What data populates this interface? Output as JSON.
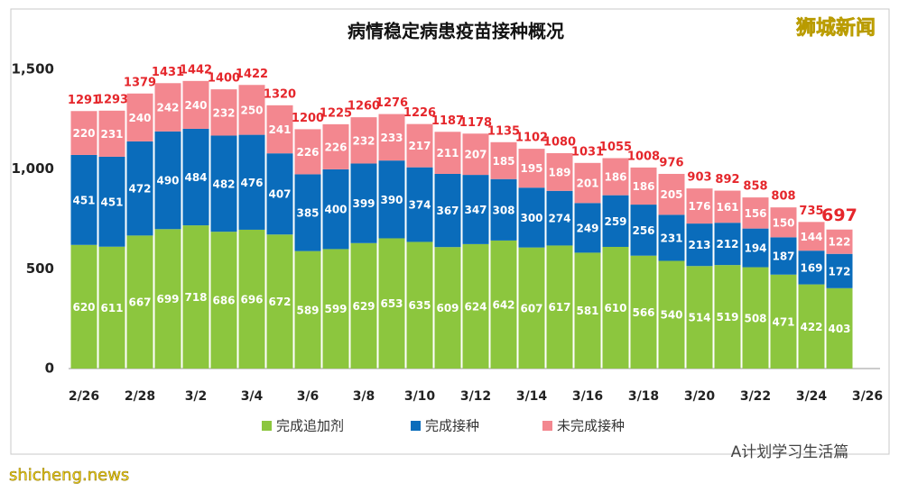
{
  "chart_data": {
    "type": "stacked-bar",
    "title": "病情稳定病患疫苗接种概况",
    "watermark": "狮城新闻",
    "categories": [
      "2/26",
      null,
      "2/28",
      null,
      "3/2",
      null,
      "3/4",
      null,
      "3/6",
      null,
      "3/8",
      null,
      "3/10",
      null,
      "3/12",
      null,
      "3/14",
      null,
      "3/16",
      null,
      "3/18",
      null,
      "3/20",
      null,
      "3/22",
      null,
      "3/24",
      null,
      "3/26"
    ],
    "series": [
      {
        "name": "完成追加剂",
        "color": "#8cc63e",
        "values": [
          620,
          611,
          667,
          699,
          718,
          686,
          696,
          672,
          589,
          599,
          629,
          653,
          635,
          609,
          624,
          642,
          607,
          617,
          581,
          610,
          566,
          540,
          514,
          519,
          508,
          471,
          422,
          403,
          null
        ]
      },
      {
        "name": "完成接种",
        "color": "#0a6cbb",
        "values": [
          451,
          451,
          472,
          490,
          484,
          482,
          476,
          407,
          385,
          400,
          399,
          390,
          374,
          367,
          347,
          308,
          300,
          274,
          249,
          259,
          256,
          231,
          213,
          212,
          194,
          187,
          169,
          172,
          null
        ]
      },
      {
        "name": "未完成接种",
        "color": "#f3878f",
        "values": [
          220,
          231,
          240,
          242,
          240,
          232,
          250,
          241,
          226,
          226,
          232,
          233,
          217,
          211,
          207,
          185,
          195,
          189,
          201,
          186,
          186,
          205,
          176,
          161,
          156,
          150,
          144,
          122,
          null
        ]
      }
    ],
    "totals": [
      1291,
      1293,
      1379,
      1431,
      1442,
      1400,
      1422,
      1320,
      1200,
      1225,
      1260,
      1276,
      1226,
      1187,
      1178,
      1135,
      1102,
      1080,
      1031,
      1055,
      1008,
      976,
      903,
      892,
      858,
      808,
      735,
      697,
      null
    ],
    "ylim": [
      0,
      1500
    ],
    "yticks": [
      0,
      500,
      {
        "value": 1000,
        "label": "1,000"
      },
      {
        "value": 1500,
        "label": "1,500"
      }
    ],
    "total_color": "#e5262b",
    "footer": {
      "account": "A计划学习生活篇",
      "site": "shicheng.news"
    }
  }
}
